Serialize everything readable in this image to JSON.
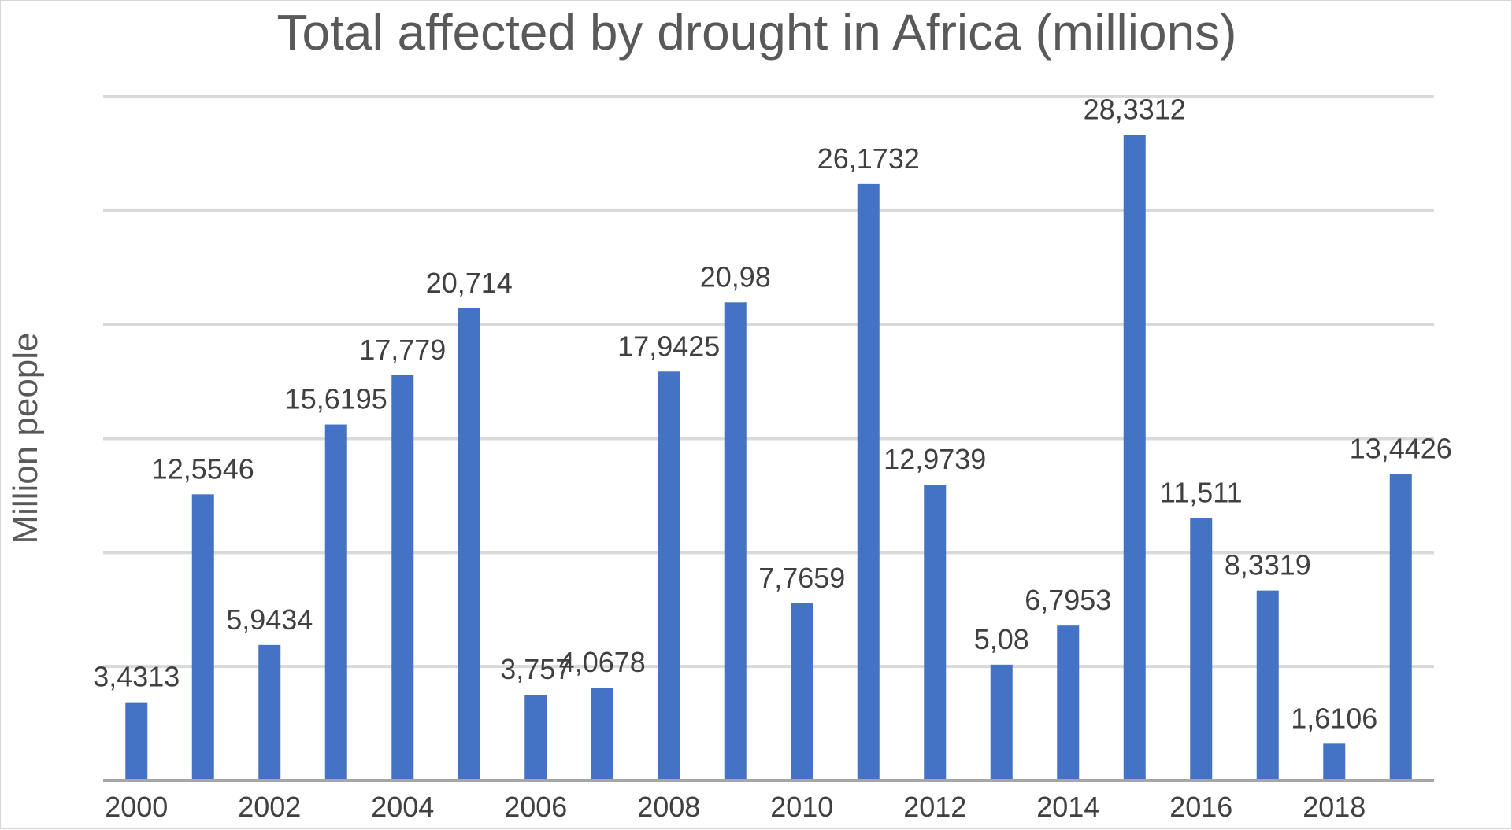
{
  "chart_data": {
    "type": "bar",
    "title": "Total affected by drought in Africa (millions)",
    "ylabel": "Million people",
    "xlabel": "",
    "x": [
      2000,
      2001,
      2002,
      2003,
      2004,
      2005,
      2006,
      2007,
      2008,
      2009,
      2010,
      2011,
      2012,
      2013,
      2014,
      2015,
      2016,
      2017,
      2018,
      2019
    ],
    "x_tick_labels": [
      "2000",
      "2002",
      "2004",
      "2006",
      "2008",
      "2010",
      "2012",
      "2014",
      "2016",
      "2018"
    ],
    "values": [
      3.4313,
      12.5546,
      5.9434,
      15.6195,
      17.779,
      20.714,
      3.757,
      4.0678,
      17.9425,
      20.98,
      7.7659,
      26.1732,
      12.9739,
      5.08,
      6.7953,
      28.3312,
      11.511,
      8.3319,
      1.6106,
      13.4426
    ],
    "data_labels": [
      "3,4313",
      "12,5546",
      "5,9434",
      "15,6195",
      "17,779",
      "20,714",
      "3,757",
      "4,0678",
      "17,9425",
      "20,98",
      "7,7659",
      "26,1732",
      "12,9739",
      "5,08",
      "6,7953",
      "28,3312",
      "11,511",
      "8,3319",
      "1,6106",
      "13,4426"
    ],
    "ylim": [
      0,
      30
    ],
    "y_gridlines": [
      5,
      10,
      15,
      20,
      25,
      30
    ],
    "y_tick_labels_shown": false,
    "grid": true,
    "legend": "none",
    "bar_color": "#4472C4",
    "gridline_color": "#D9D9D9",
    "baseline_color": "#A6A6A6",
    "text_color": "#404040",
    "title_color": "#595959"
  }
}
